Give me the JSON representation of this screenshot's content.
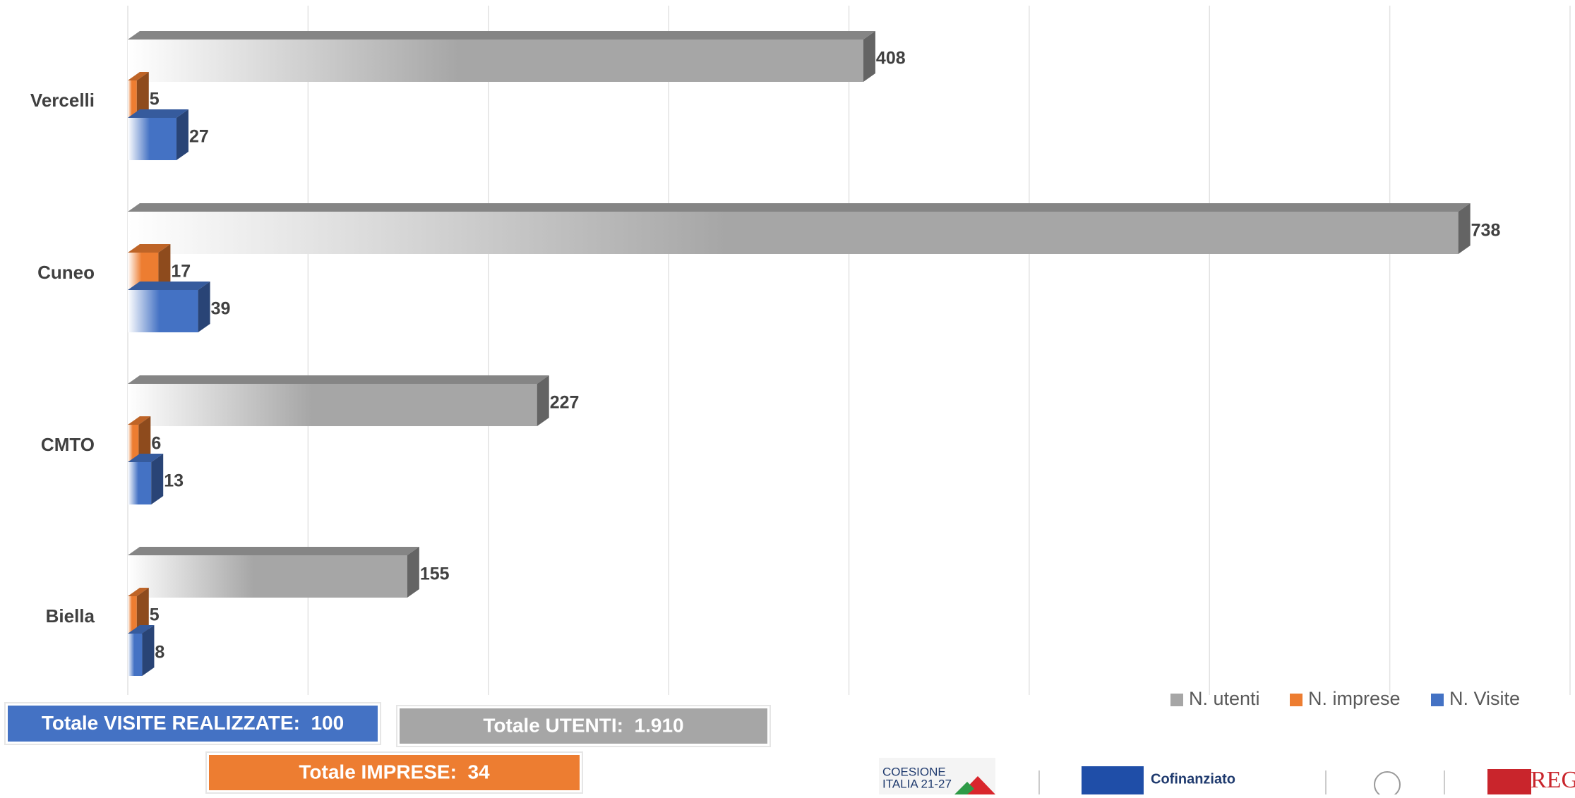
{
  "chart_data": {
    "type": "bar",
    "orientation": "horizontal",
    "categories": [
      "Vercelli",
      "Cuneo",
      "CMTO",
      "Biella"
    ],
    "series": [
      {
        "name": "N. utenti",
        "color": "#a6a6a6",
        "values": [
          408,
          738,
          227,
          155
        ]
      },
      {
        "name": "N. imprese",
        "color": "#ed7d31",
        "values": [
          5,
          17,
          6,
          5
        ]
      },
      {
        "name": "N. Visite",
        "color": "#4472c4",
        "values": [
          27,
          39,
          13,
          8
        ]
      }
    ],
    "xlim": [
      0,
      800
    ],
    "xticks": [
      0,
      100,
      200,
      300,
      400,
      500,
      600,
      700,
      800
    ],
    "grid": true,
    "legend": "bottom-right",
    "annotations": [
      {
        "text": "Totale VISITE REALIZZATE:  100",
        "color": "#4472c4"
      },
      {
        "text": "Totale UTENTI:  1.910",
        "color": "#a6a6a6"
      },
      {
        "text": "Totale IMPRESE:  34",
        "color": "#ed7d31"
      }
    ]
  },
  "footer": {
    "logos": [
      "COESIONE",
      "ITALIA 21-27",
      "Cofinanziato",
      "REG"
    ]
  }
}
